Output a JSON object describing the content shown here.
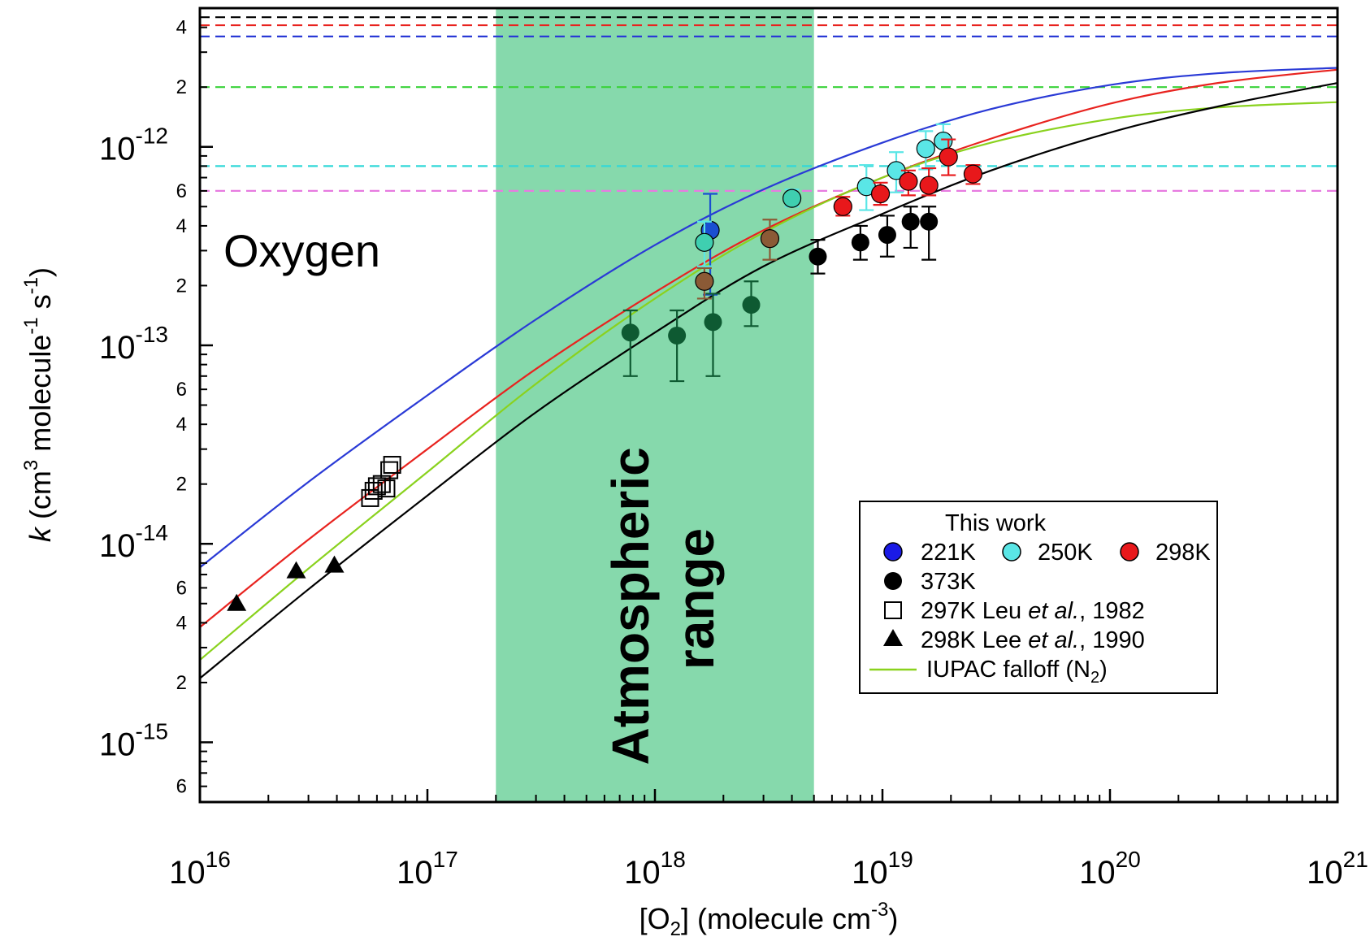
{
  "chart_data": {
    "type": "scatter",
    "xscale": "log",
    "yscale": "log",
    "xlim": [
      1e+16,
      1e+21
    ],
    "ylim": [
      5e-16,
      5e-12
    ],
    "xlabel": {
      "pre": "[O",
      "sub": "2",
      "mid": "] (molecule cm",
      "sup": "-3",
      "post": ")"
    },
    "ylabel": {
      "k": "k",
      "a": " (cm",
      "s3": "3",
      "b": " molecule",
      "sm1a": "-1",
      "c": " s",
      "sm1b": "-1",
      "d": ")"
    },
    "x_ticks": [
      {
        "value": 1e+16,
        "base": "10",
        "exp": "16"
      },
      {
        "value": 1e+17,
        "base": "10",
        "exp": "17"
      },
      {
        "value": 1e+18,
        "base": "10",
        "exp": "18"
      },
      {
        "value": 1e+19,
        "base": "10",
        "exp": "19"
      },
      {
        "value": 1e+20,
        "base": "10",
        "exp": "20"
      },
      {
        "value": 1e+21,
        "base": "10",
        "exp": "21"
      }
    ],
    "y_major_ticks": [
      {
        "value": 1e-15,
        "base": "10",
        "exp": "-15"
      },
      {
        "value": 1e-14,
        "base": "10",
        "exp": "-14"
      },
      {
        "value": 1e-13,
        "base": "10",
        "exp": "-13"
      },
      {
        "value": 1e-12,
        "base": "10",
        "exp": "-12"
      }
    ],
    "y_minor_labels": [
      {
        "value": 6e-16,
        "label": "6"
      },
      {
        "value": 2e-15,
        "label": "2"
      },
      {
        "value": 4e-15,
        "label": "4"
      },
      {
        "value": 6e-15,
        "label": "6"
      },
      {
        "value": 2e-14,
        "label": "2"
      },
      {
        "value": 4e-14,
        "label": "4"
      },
      {
        "value": 6e-14,
        "label": "6"
      },
      {
        "value": 2e-13,
        "label": "2"
      },
      {
        "value": 4e-13,
        "label": "4"
      },
      {
        "value": 6e-13,
        "label": "6"
      },
      {
        "value": 2e-12,
        "label": "2"
      },
      {
        "value": 4e-12,
        "label": "4"
      }
    ],
    "shaded_region": {
      "x": [
        2e+17,
        5e+18
      ],
      "color": "#86d9ac",
      "label_line1": "Atmospheric",
      "label_line2": "range"
    },
    "annotation": "Oxygen",
    "hlines": [
      {
        "y": 4.5e-12,
        "color": "#000000"
      },
      {
        "y": 4.1e-12,
        "color": "#e8231f"
      },
      {
        "y": 3.6e-12,
        "color": "#2a3ad6"
      },
      {
        "y": 2e-12,
        "color": "#3ad23a"
      },
      {
        "y": 8e-13,
        "color": "#32d8d8"
      },
      {
        "y": 6e-13,
        "color": "#e77be0"
      }
    ],
    "curves": [
      {
        "name": "221K",
        "color": "#2a3ad6",
        "points": [
          [
            1e+16,
            7.6e-15
          ],
          [
            3e+16,
            2.05e-14
          ],
          [
            1e+17,
            5.6e-14
          ],
          [
            3e+17,
            1.35e-13
          ],
          [
            1e+18,
            3.2e-13
          ],
          [
            3e+18,
            6.1e-13
          ],
          [
            1e+19,
            1.05e-12
          ],
          [
            3e+19,
            1.55e-12
          ],
          [
            1e+20,
            2.05e-12
          ],
          [
            3e+20,
            2.35e-12
          ],
          [
            1e+21,
            2.5e-12
          ]
        ]
      },
      {
        "name": "298K",
        "color": "#e8231f",
        "points": [
          [
            1e+16,
            3.8e-15
          ],
          [
            3e+16,
            1.05e-14
          ],
          [
            1e+17,
            3e-14
          ],
          [
            3e+17,
            7.6e-14
          ],
          [
            1e+18,
            1.85e-13
          ],
          [
            3e+18,
            3.8e-13
          ],
          [
            1e+19,
            7e-13
          ],
          [
            3e+19,
            1.1e-12
          ],
          [
            1e+20,
            1.65e-12
          ],
          [
            3e+20,
            2.1e-12
          ],
          [
            1e+21,
            2.45e-12
          ]
        ]
      },
      {
        "name": "IUPAC falloff (N2)",
        "color": "#8ad21e",
        "points": [
          [
            1e+16,
            2.6e-15
          ],
          [
            3e+16,
            7.5e-15
          ],
          [
            1e+17,
            2.3e-14
          ],
          [
            3e+17,
            6.4e-14
          ],
          [
            1e+18,
            1.72e-13
          ],
          [
            3e+18,
            3.7e-13
          ],
          [
            1e+19,
            7e-13
          ],
          [
            3e+19,
            1.05e-12
          ],
          [
            1e+20,
            1.38e-12
          ],
          [
            3e+20,
            1.58e-12
          ],
          [
            1e+21,
            1.68e-12
          ]
        ]
      },
      {
        "name": "373K",
        "color": "#000000",
        "points": [
          [
            1e+16,
            2.1e-15
          ],
          [
            3e+16,
            5.9e-15
          ],
          [
            1e+17,
            1.75e-14
          ],
          [
            3e+17,
            4.6e-14
          ],
          [
            1e+18,
            1.16e-13
          ],
          [
            3e+18,
            2.5e-13
          ],
          [
            1e+19,
            4.6e-13
          ],
          [
            3e+19,
            7.6e-13
          ],
          [
            1e+20,
            1.18e-12
          ],
          [
            3e+20,
            1.6e-12
          ],
          [
            1e+21,
            2.1e-12
          ]
        ]
      }
    ],
    "series": [
      {
        "name": "221K",
        "color": "#1a4fd1",
        "points": [
          [
            1.75e+18,
            3.8e-13,
            1.8e-13,
            5.8e-13
          ]
        ]
      },
      {
        "name": "250K",
        "color": "#5ae6e6",
        "points": [
          [
            1.65e+18,
            3.3e-13,
            2.5e-13,
            4.2e-13
          ],
          [
            4e+18,
            5.5e-13,
            5e-13,
            6.1e-13
          ],
          [
            8.5e+18,
            6.3e-13,
            4.8e-13,
            8.1e-13
          ],
          [
            1.15e+19,
            7.6e-13,
            5.9e-13,
            9.4e-13
          ],
          [
            1.55e+19,
            9.8e-13,
            7.7e-13,
            1.2e-12
          ],
          [
            1.85e+19,
            1.07e-12,
            8.5e-13,
            1.3e-12
          ]
        ]
      },
      {
        "name": "298K",
        "color": "#e8181b",
        "points": [
          [
            6.7e+18,
            5e-13,
            4.5e-13,
            5.6e-13
          ],
          [
            9.8e+18,
            5.8e-13,
            5.1e-13,
            6.6e-13
          ],
          [
            1.3e+19,
            6.7e-13,
            5.7e-13,
            7.6e-13
          ],
          [
            1.6e+19,
            6.4e-13,
            5.7e-13,
            7.8e-13
          ],
          [
            1.95e+19,
            8.9e-13,
            7.2e-13,
            1.09e-12
          ],
          [
            2.5e+19,
            7.3e-13,
            6.5e-13,
            8.1e-13
          ]
        ]
      },
      {
        "name": "373K",
        "color": "#000000",
        "points": [
          [
            7.8e+17,
            1.16e-13,
            7e-14,
            1.5e-13
          ],
          [
            1.25e+18,
            1.12e-13,
            6.6e-14,
            1.5e-13
          ],
          [
            1.8e+18,
            1.31e-13,
            7e-14,
            1.82e-13
          ],
          [
            2.65e+18,
            1.6e-13,
            1.25e-13,
            2.1e-13
          ],
          [
            5.2e+18,
            2.8e-13,
            2.3e-13,
            3.4e-13
          ],
          [
            8e+18,
            3.3e-13,
            2.7e-13,
            4e-13
          ],
          [
            1.05e+19,
            3.6e-13,
            2.8e-13,
            4.5e-13
          ],
          [
            1.33e+19,
            4.2e-13,
            3.1e-13,
            5e-13
          ],
          [
            1.6e+19,
            4.2e-13,
            2.7e-13,
            5e-13
          ]
        ]
      },
      {
        "name": "297K Leu et al., 1982",
        "color": "#000000",
        "marker": "square",
        "points": [
          [
            5.6e+16,
            1.7e-14
          ],
          [
            5.8e+16,
            1.85e-14
          ],
          [
            6e+16,
            1.95e-14
          ],
          [
            6.3e+16,
            2e-14
          ],
          [
            6.6e+16,
            1.9e-14
          ],
          [
            6.8e+16,
            2.35e-14
          ],
          [
            7e+16,
            2.5e-14
          ]
        ]
      },
      {
        "name": "298K Lee et al., 1990",
        "color": "#000000",
        "marker": "triangle",
        "points": [
          [
            1.45e+16,
            5e-15
          ],
          [
            2.65e+16,
            7.3e-15
          ],
          [
            3.9e+16,
            7.8e-15
          ]
        ]
      }
    ],
    "overlay_points": [
      {
        "x": 1.65e+18,
        "y": 2.1e-13,
        "color": "#8b5a36",
        "lo": 1.72e-13,
        "hi": 2.45e-13
      },
      {
        "x": 3.2e+18,
        "y": 3.45e-13,
        "color": "#8b5a36",
        "lo": 2.7e-13,
        "hi": 4.3e-13
      }
    ],
    "legend": {
      "position": "lower-right",
      "title": "This work",
      "t221": "221K",
      "t250": "250K",
      "t298": "298K",
      "t373": "373K",
      "leu": {
        "a": "297K Leu ",
        "b": "et al.",
        "c": ", 1982"
      },
      "lee": {
        "a": "298K Lee ",
        "b": "et al.",
        "c": ", 1990"
      },
      "iupac": {
        "a": "IUPAC falloff (N",
        "sub": "2",
        "b": ")"
      }
    }
  }
}
